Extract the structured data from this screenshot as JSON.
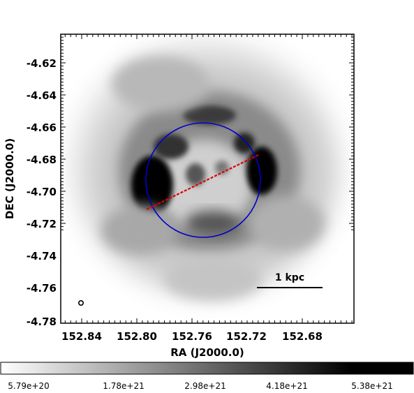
{
  "axes": {
    "xlabel": "RA (J2000.0)",
    "ylabel": "DEC (J2000.0)",
    "x_ticks": [
      "152.84",
      "152.80",
      "152.76",
      "152.72",
      "152.68"
    ],
    "y_ticks": [
      "-4.62",
      "-4.64",
      "-4.66",
      "-4.68",
      "-4.70",
      "-4.72",
      "-4.74",
      "-4.76",
      "-4.78"
    ]
  },
  "scale_bar": {
    "label": "1 kpc"
  },
  "colorbar": {
    "ticks": [
      "5.79e+20",
      "1.78e+21",
      "2.98e+21",
      "4.18e+21",
      "5.38e+21"
    ]
  },
  "colors": {
    "circle": "#0000cc",
    "slit": "#dd0000"
  }
}
